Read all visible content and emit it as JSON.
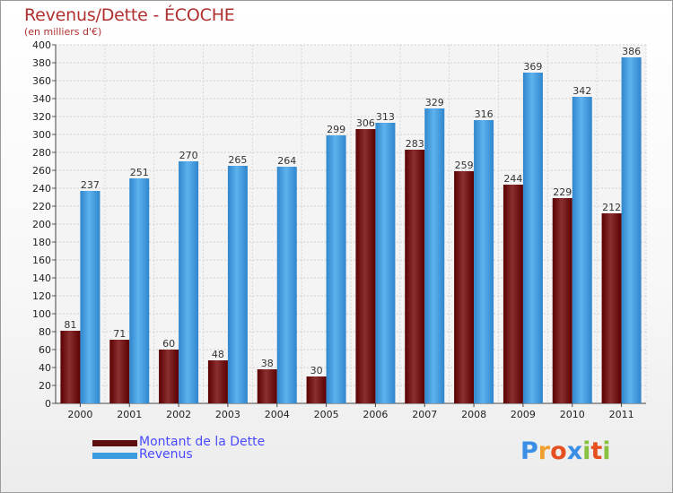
{
  "header": {
    "title": "Revenus/Dette - ÉCOCHE",
    "subtitle": "(en milliers d'€)"
  },
  "logo": {
    "letters": [
      "P",
      "r",
      "o",
      "x",
      "i",
      "t",
      "i"
    ],
    "colors": [
      "#3a8ee6",
      "#f0a030",
      "#e65020",
      "#3a8ee6",
      "#88c040",
      "#e65020",
      "#88c040"
    ]
  },
  "chart_data": {
    "type": "bar",
    "categories": [
      "2000",
      "2001",
      "2002",
      "2003",
      "2004",
      "2005",
      "2006",
      "2007",
      "2008",
      "2009",
      "2010",
      "2011"
    ],
    "series": [
      {
        "name": "Montant de la Dette",
        "color": "#7a1414",
        "values": [
          81,
          71,
          60,
          48,
          38,
          30,
          306,
          283,
          259,
          244,
          229,
          212
        ]
      },
      {
        "name": "Revenus",
        "color": "#3d9be0",
        "values": [
          237,
          251,
          270,
          265,
          264,
          299,
          313,
          329,
          316,
          369,
          342,
          386
        ]
      }
    ],
    "title": "Revenus/Dette - ÉCOCHE",
    "ylabel": "(en milliers d'€)",
    "ylim": [
      0,
      400
    ],
    "ytick_step": 20,
    "grid": true,
    "legend": "bottom-left"
  }
}
